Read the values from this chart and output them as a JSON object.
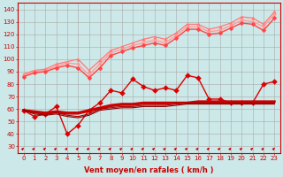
{
  "bg_color": "#cce8e8",
  "grid_color": "#aaaaaa",
  "x_labels": [
    "0",
    "1",
    "2",
    "3",
    "4",
    "5",
    "6",
    "7",
    "8",
    "9",
    "10",
    "11",
    "12",
    "13",
    "14",
    "15",
    "16",
    "17",
    "18",
    "19",
    "20",
    "21",
    "22",
    "23"
  ],
  "xlabel": "Vent moyen/en rafales ( km/h )",
  "ylabel_ticks": [
    30,
    40,
    50,
    60,
    70,
    80,
    90,
    100,
    110,
    120,
    130,
    140
  ],
  "ylim": [
    25,
    145
  ],
  "xlim": [
    -0.5,
    23.5
  ],
  "series": [
    {
      "name": "upper_light1",
      "color": "#ffbbbb",
      "linewidth": 0.8,
      "marker": null,
      "y": [
        88,
        91,
        92,
        96,
        98,
        100,
        91,
        99,
        107,
        110,
        113,
        116,
        118,
        116,
        121,
        128,
        128,
        124,
        126,
        129,
        134,
        133,
        128,
        138
      ]
    },
    {
      "name": "upper_light2",
      "color": "#ffbbbb",
      "linewidth": 0.8,
      "marker": null,
      "y": [
        87,
        90,
        91,
        95,
        97,
        96,
        88,
        97,
        106,
        108,
        111,
        114,
        116,
        114,
        119,
        126,
        126,
        122,
        124,
        127,
        132,
        131,
        126,
        136
      ]
    },
    {
      "name": "upper_med1",
      "color": "#ff7777",
      "linewidth": 0.8,
      "marker": "^",
      "markersize": 2.5,
      "y": [
        88,
        91,
        92,
        96,
        98,
        100,
        91,
        99,
        107,
        110,
        113,
        116,
        118,
        116,
        121,
        128,
        128,
        124,
        126,
        129,
        134,
        133,
        128,
        138
      ]
    },
    {
      "name": "upper_med2",
      "color": "#ff9999",
      "linewidth": 0.8,
      "marker": "D",
      "markersize": 2,
      "y": [
        87,
        90,
        91,
        94,
        97,
        96,
        87,
        96,
        105,
        108,
        111,
        113,
        115,
        113,
        119,
        126,
        126,
        122,
        123,
        127,
        131,
        130,
        126,
        136
      ]
    },
    {
      "name": "upper_dark",
      "color": "#ff4444",
      "linewidth": 1.0,
      "marker": "D",
      "markersize": 2.5,
      "y": [
        86,
        89,
        90,
        93,
        95,
        93,
        85,
        93,
        103,
        106,
        109,
        111,
        113,
        111,
        117,
        124,
        124,
        120,
        121,
        125,
        129,
        128,
        123,
        133
      ]
    },
    {
      "name": "mid_scatter",
      "color": "#dd0000",
      "linewidth": 1.0,
      "marker": "D",
      "markersize": 3,
      "y": [
        59,
        54,
        56,
        62,
        40,
        47,
        59,
        65,
        75,
        73,
        84,
        78,
        75,
        77,
        75,
        87,
        85,
        68,
        68,
        65,
        65,
        65,
        80,
        82
      ]
    },
    {
      "name": "lower_flat1",
      "color": "#cc0000",
      "linewidth": 2.0,
      "marker": null,
      "y": [
        59,
        58,
        57,
        58,
        57,
        57,
        59,
        61,
        63,
        64,
        64,
        65,
        65,
        65,
        65,
        65,
        66,
        66,
        66,
        66,
        66,
        66,
        66,
        66
      ]
    },
    {
      "name": "lower_flat2",
      "color": "#cc0000",
      "linewidth": 1.0,
      "marker": null,
      "y": [
        59,
        57,
        56,
        57,
        56,
        56,
        58,
        60,
        62,
        63,
        63,
        64,
        64,
        64,
        65,
        65,
        65,
        65,
        65,
        65,
        65,
        65,
        65,
        65
      ]
    },
    {
      "name": "lower_flat3",
      "color": "#aa0000",
      "linewidth": 0.8,
      "marker": null,
      "y": [
        59,
        57,
        56,
        57,
        55,
        54,
        56,
        60,
        61,
        62,
        62,
        63,
        63,
        63,
        64,
        65,
        65,
        65,
        65,
        65,
        65,
        65,
        65,
        65
      ]
    },
    {
      "name": "lower_flat4",
      "color": "#880000",
      "linewidth": 0.8,
      "marker": null,
      "y": [
        59,
        56,
        55,
        56,
        54,
        53,
        55,
        59,
        60,
        61,
        61,
        62,
        62,
        62,
        63,
        64,
        64,
        64,
        64,
        64,
        64,
        64,
        64,
        64
      ]
    }
  ],
  "arrow_color": "#cc0000",
  "xlabel_fontsize": 6,
  "tick_fontsize": 5
}
